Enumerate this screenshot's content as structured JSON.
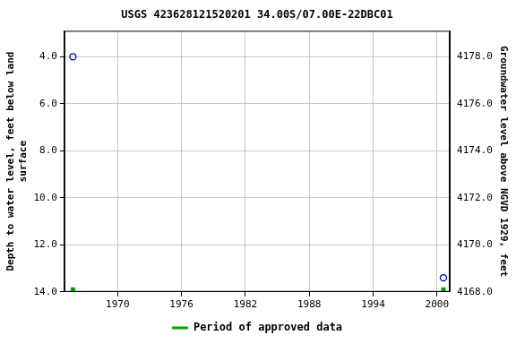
{
  "chart_data": {
    "type": "scatter",
    "title": "USGS 423628121520201 34.00S/07.00E-22DBC01",
    "y_label": [
      "Depth to water level, feet below land",
      "surface"
    ],
    "y2_label": "Groundwater level above NGVD 1929, feet",
    "x": [
      1965.8,
      2000.6
    ],
    "series": [
      {
        "values": [
          4.0,
          13.4
        ],
        "color": "#0000cc",
        "marker": "open_circle"
      },
      {
        "name": "Period of approved data",
        "values": [
          13.9,
          13.9
        ],
        "color": "#00a000",
        "marker": "square"
      }
    ],
    "xlim": [
      1965.0,
      2001.2
    ],
    "xticks": [
      1970,
      1976,
      1982,
      1988,
      1994,
      2000
    ],
    "ylim": [
      14.0,
      2.9
    ],
    "yticks": [
      {
        "value": 4,
        "label": "4.0"
      },
      {
        "value": 6,
        "label": "6.0"
      },
      {
        "value": 8,
        "label": "8.0"
      },
      {
        "value": 10,
        "label": "10.0"
      },
      {
        "value": 12,
        "label": "12.0"
      },
      {
        "value": 14,
        "label": "14.0"
      }
    ],
    "y2lim": [
      4168,
      4179.1
    ],
    "y2ticks": [
      {
        "value": 4168,
        "label": "4168.0"
      },
      {
        "value": 4170,
        "label": "4170.0"
      },
      {
        "value": 4172,
        "label": "4172.0"
      },
      {
        "value": 4174,
        "label": "4174.0"
      },
      {
        "value": 4176,
        "label": "4176.0"
      },
      {
        "value": 4178,
        "label": "4178.0"
      }
    ],
    "grid": true,
    "legend": "bottom"
  }
}
